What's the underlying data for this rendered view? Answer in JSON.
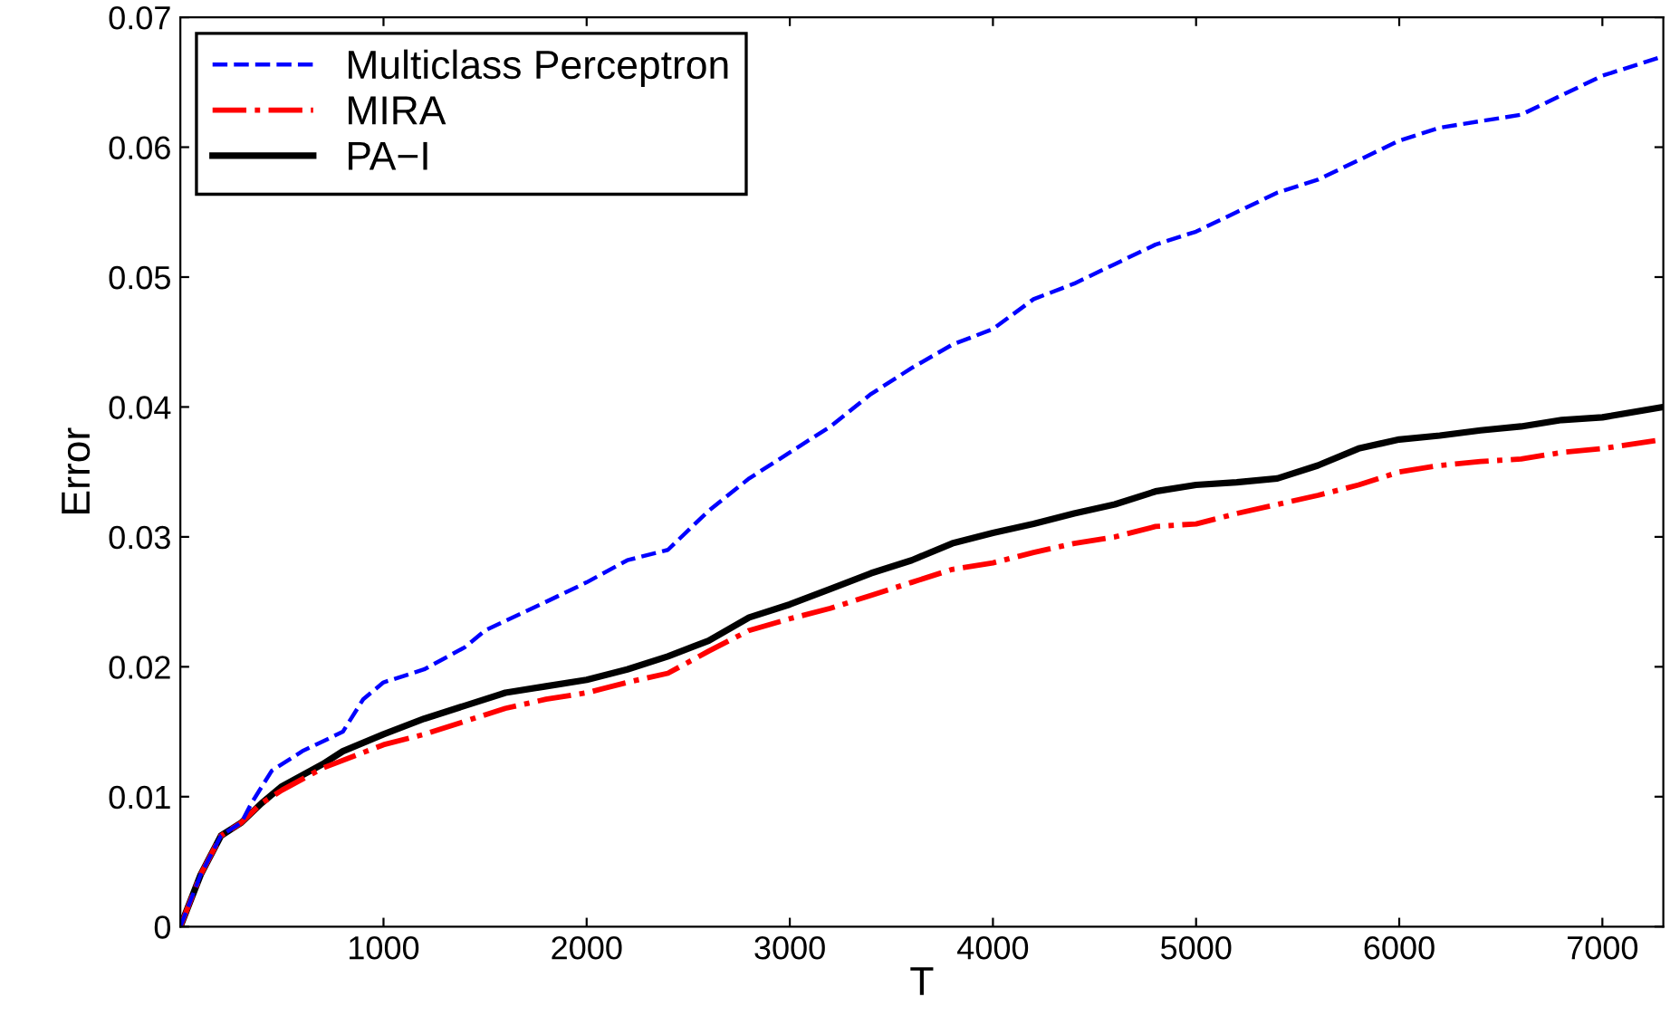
{
  "chart_data": {
    "type": "line",
    "xlabel": "T",
    "ylabel": "Error",
    "xlim": [
      0,
      7300
    ],
    "ylim": [
      0,
      0.07
    ],
    "xticks": [
      1000,
      2000,
      3000,
      4000,
      5000,
      6000,
      7000
    ],
    "yticks": [
      0,
      0.01,
      0.02,
      0.03,
      0.04,
      0.05,
      0.06,
      0.07
    ],
    "grid": false,
    "legend": "top left",
    "series": [
      {
        "name": "Multiclass Perceptron",
        "color": "#0000ff",
        "line_style": "dashed",
        "x": [
          0,
          100,
          200,
          300,
          350,
          450,
          600,
          800,
          900,
          1000,
          1200,
          1400,
          1500,
          1800,
          2000,
          2200,
          2400,
          2600,
          2800,
          3000,
          3200,
          3400,
          3600,
          3800,
          4000,
          4200,
          4400,
          4600,
          4800,
          5000,
          5200,
          5400,
          5600,
          5800,
          6000,
          6200,
          6400,
          6600,
          6800,
          7000,
          7300
        ],
        "values": [
          0,
          0.004,
          0.007,
          0.008,
          0.0095,
          0.012,
          0.0135,
          0.015,
          0.0175,
          0.0188,
          0.0198,
          0.0215,
          0.0228,
          0.025,
          0.0265,
          0.0282,
          0.029,
          0.032,
          0.0345,
          0.0365,
          0.0385,
          0.041,
          0.043,
          0.0448,
          0.046,
          0.0483,
          0.0495,
          0.051,
          0.0525,
          0.0535,
          0.055,
          0.0565,
          0.0575,
          0.059,
          0.0605,
          0.0615,
          0.062,
          0.0625,
          0.064,
          0.0655,
          0.067
        ]
      },
      {
        "name": "MIRA",
        "color": "#ff0000",
        "line_style": "dashdot",
        "x": [
          0,
          100,
          200,
          300,
          400,
          500,
          700,
          1000,
          1200,
          1400,
          1600,
          1800,
          2000,
          2200,
          2400,
          2600,
          2800,
          3000,
          3200,
          3400,
          3600,
          3800,
          4000,
          4200,
          4400,
          4600,
          4800,
          5000,
          5200,
          5400,
          5600,
          5800,
          6000,
          6200,
          6400,
          6600,
          6800,
          7000,
          7300
        ],
        "values": [
          0,
          0.004,
          0.007,
          0.008,
          0.0095,
          0.0105,
          0.0122,
          0.014,
          0.0148,
          0.0158,
          0.0168,
          0.0175,
          0.018,
          0.0188,
          0.0195,
          0.0212,
          0.0228,
          0.0237,
          0.0245,
          0.0255,
          0.0265,
          0.0275,
          0.028,
          0.0288,
          0.0295,
          0.03,
          0.0308,
          0.031,
          0.0318,
          0.0325,
          0.0332,
          0.034,
          0.035,
          0.0355,
          0.0358,
          0.036,
          0.0365,
          0.0368,
          0.0375
        ]
      },
      {
        "name": "PA−I",
        "color": "#000000",
        "line_style": "solid",
        "x": [
          0,
          100,
          200,
          300,
          400,
          500,
          700,
          800,
          1000,
          1200,
          1400,
          1600,
          1800,
          2000,
          2200,
          2400,
          2600,
          2800,
          3000,
          3200,
          3400,
          3600,
          3800,
          4000,
          4200,
          4400,
          4600,
          4800,
          5000,
          5200,
          5400,
          5600,
          5800,
          6000,
          6200,
          6400,
          6600,
          6800,
          7000,
          7300
        ],
        "values": [
          0,
          0.004,
          0.007,
          0.008,
          0.0095,
          0.0108,
          0.0125,
          0.0135,
          0.0148,
          0.016,
          0.017,
          0.018,
          0.0185,
          0.019,
          0.0198,
          0.0208,
          0.022,
          0.0238,
          0.0248,
          0.026,
          0.0272,
          0.0282,
          0.0295,
          0.0303,
          0.031,
          0.0318,
          0.0325,
          0.0335,
          0.034,
          0.0342,
          0.0345,
          0.0355,
          0.0368,
          0.0375,
          0.0378,
          0.0382,
          0.0385,
          0.039,
          0.0392,
          0.04
        ]
      }
    ]
  }
}
